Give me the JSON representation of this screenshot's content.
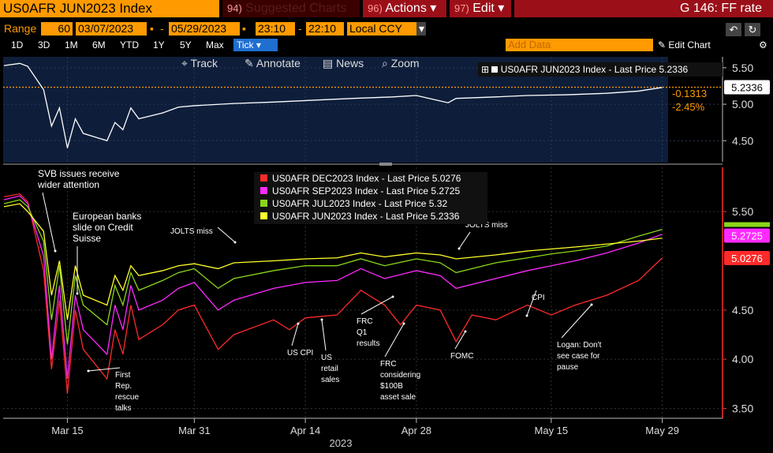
{
  "header": {
    "ticker": "US0AFR JUN2023 Index",
    "suggested_num": "94)",
    "suggested": "Suggested Charts",
    "actions_num": "96)",
    "actions": "Actions",
    "edit_num": "97)",
    "edit": "Edit",
    "chart_name": "G 146: FF rate"
  },
  "range": {
    "label": "Range",
    "count": "60",
    "start_date": "03/07/2023",
    "end_date": "05/29/2023",
    "start_time": "23:10",
    "end_time": "22:10",
    "currency": "Local CCY",
    "add_data": "Add Data",
    "edit_chart": "Edit Chart"
  },
  "periods": [
    "1D",
    "3D",
    "1M",
    "6M",
    "YTD",
    "1Y",
    "5Y",
    "Max"
  ],
  "tick_label": "Tick",
  "tools": {
    "track": "Track",
    "annotate": "Annotate",
    "news": "News",
    "zoom": "Zoom"
  },
  "colors": {
    "dec": "#ff2a2a",
    "sep": "#ff2aff",
    "jul": "#8ad61a",
    "jun": "#ffff2a",
    "top_line": "#ffffff",
    "top_bg": "#0e1e3a",
    "orange": "#ff9a00"
  },
  "chart_data": [
    {
      "type": "line",
      "title": "",
      "legend": "US0AFR JUN2023 Index - Last Price 5.2336",
      "last_value": "5.2336",
      "change": "-0.1313",
      "change_pct": "-2.45%",
      "ylim": [
        4.2,
        5.65
      ],
      "yticks": [
        "5.50",
        "5.00",
        "4.50"
      ],
      "ytick_values": [
        5.5,
        5.0,
        4.5
      ],
      "series": [
        {
          "name": "US0AFR JUN2023 Index - Last Price",
          "x": [
            "03/07",
            "03/09",
            "03/10",
            "03/12",
            "03/13",
            "03/14",
            "03/15",
            "03/16",
            "03/17",
            "03/20",
            "03/21",
            "03/22",
            "03/23",
            "03/24",
            "03/27",
            "03/29",
            "03/31",
            "04/05",
            "04/10",
            "04/14",
            "04/20",
            "04/25",
            "04/28",
            "05/02",
            "05/03",
            "05/08",
            "05/12",
            "05/17",
            "05/22",
            "05/26",
            "05/29"
          ],
          "y": [
            5.53,
            5.56,
            5.52,
            5.2,
            4.7,
            4.95,
            4.4,
            4.8,
            4.6,
            4.5,
            4.75,
            4.65,
            4.95,
            4.8,
            4.88,
            4.96,
            4.98,
            5.01,
            5.03,
            5.05,
            5.08,
            5.1,
            5.12,
            5.02,
            5.08,
            5.1,
            5.12,
            5.13,
            5.15,
            5.18,
            5.23
          ]
        }
      ]
    },
    {
      "type": "line",
      "title": "",
      "xlabel": "",
      "year_label": "2023",
      "xticks": [
        "Mar 15",
        "Mar 31",
        "Apr 14",
        "Apr 28",
        "May 15",
        "May 29"
      ],
      "xtick_dates": [
        "03/15",
        "03/31",
        "04/14",
        "04/28",
        "05/15",
        "05/29"
      ],
      "ylim": [
        3.4,
        5.95
      ],
      "yticks": [
        "5.50",
        "4.50",
        "4.00",
        "3.50"
      ],
      "ytick_values": [
        5.5,
        4.5,
        4.0,
        3.5
      ],
      "legend_position": "top-center",
      "series": [
        {
          "name": "US0AFR DEC2023 Index - Last Price 5.0276",
          "last_value": "5.0276",
          "x": [
            "03/07",
            "03/09",
            "03/10",
            "03/12",
            "03/13",
            "03/14",
            "03/15",
            "03/16",
            "03/17",
            "03/20",
            "03/21",
            "03/22",
            "03/23",
            "03/24",
            "03/27",
            "03/29",
            "03/31",
            "04/03",
            "04/05",
            "04/10",
            "04/12",
            "04/14",
            "04/18",
            "04/21",
            "04/24",
            "04/26",
            "04/28",
            "05/01",
            "05/03",
            "05/05",
            "05/08",
            "05/12",
            "05/15",
            "05/18",
            "05/22",
            "05/26",
            "05/29"
          ],
          "y": [
            5.65,
            5.68,
            5.6,
            4.9,
            3.9,
            4.6,
            3.65,
            4.5,
            4.1,
            3.8,
            4.3,
            4.05,
            4.55,
            4.2,
            4.35,
            4.5,
            4.55,
            4.1,
            4.25,
            4.4,
            4.3,
            4.42,
            4.45,
            4.7,
            4.55,
            4.35,
            4.55,
            4.5,
            4.18,
            4.45,
            4.4,
            4.55,
            4.45,
            4.55,
            4.65,
            4.8,
            5.03
          ]
        },
        {
          "name": "US0AFR SEP2023 Index - Last Price 5.2725",
          "last_value": "5.2725",
          "x": [
            "03/07",
            "03/09",
            "03/10",
            "03/12",
            "03/13",
            "03/14",
            "03/15",
            "03/16",
            "03/17",
            "03/20",
            "03/21",
            "03/22",
            "03/23",
            "03/24",
            "03/27",
            "03/29",
            "03/31",
            "04/03",
            "04/05",
            "04/10",
            "04/14",
            "04/18",
            "04/21",
            "04/24",
            "04/28",
            "05/01",
            "05/03",
            "05/08",
            "05/12",
            "05/15",
            "05/18",
            "05/22",
            "05/26",
            "05/29"
          ],
          "y": [
            5.62,
            5.66,
            5.58,
            5.05,
            4.0,
            4.75,
            3.8,
            4.65,
            4.3,
            4.05,
            4.55,
            4.3,
            4.75,
            4.5,
            4.6,
            4.72,
            4.78,
            4.5,
            4.6,
            4.72,
            4.78,
            4.8,
            4.92,
            4.82,
            4.9,
            4.85,
            4.72,
            4.82,
            4.9,
            4.95,
            5.0,
            5.08,
            5.18,
            5.27
          ]
        },
        {
          "name": "US0AFR JUL2023 Index - Last Price 5.32",
          "last_value": "5.32",
          "x": [
            "03/07",
            "03/09",
            "03/10",
            "03/12",
            "03/13",
            "03/14",
            "03/15",
            "03/16",
            "03/17",
            "03/20",
            "03/21",
            "03/22",
            "03/23",
            "03/24",
            "03/27",
            "03/29",
            "03/31",
            "04/03",
            "04/05",
            "04/10",
            "04/14",
            "04/18",
            "04/21",
            "04/24",
            "04/28",
            "05/01",
            "05/03",
            "05/08",
            "05/12",
            "05/15",
            "05/18",
            "05/22",
            "05/26",
            "05/29"
          ],
          "y": [
            5.58,
            5.62,
            5.55,
            5.2,
            4.4,
            4.95,
            4.15,
            4.85,
            4.55,
            4.35,
            4.75,
            4.55,
            4.88,
            4.7,
            4.8,
            4.88,
            4.92,
            4.72,
            4.82,
            4.9,
            4.95,
            4.95,
            5.02,
            4.95,
            5.02,
            4.98,
            4.88,
            4.98,
            5.03,
            5.07,
            5.1,
            5.15,
            5.25,
            5.32
          ]
        },
        {
          "name": "US0AFR JUN2023 Index - Last Price 5.2336",
          "last_value": "5.2336",
          "x": [
            "03/07",
            "03/09",
            "03/10",
            "03/12",
            "03/13",
            "03/14",
            "03/15",
            "03/16",
            "03/17",
            "03/20",
            "03/21",
            "03/22",
            "03/23",
            "03/24",
            "03/27",
            "03/29",
            "03/31",
            "04/03",
            "04/05",
            "04/10",
            "04/14",
            "04/18",
            "04/21",
            "04/24",
            "04/28",
            "05/01",
            "05/03",
            "05/08",
            "05/12",
            "05/15",
            "05/18",
            "05/22",
            "05/26",
            "05/29"
          ],
          "y": [
            5.55,
            5.58,
            5.5,
            5.3,
            4.65,
            5.0,
            4.4,
            4.95,
            4.65,
            4.55,
            4.85,
            4.7,
            4.95,
            4.85,
            4.9,
            4.95,
            4.97,
            4.92,
            4.98,
            5.0,
            5.02,
            5.03,
            5.08,
            5.04,
            5.08,
            5.06,
            5.02,
            5.06,
            5.1,
            5.12,
            5.14,
            5.17,
            5.2,
            5.23
          ]
        }
      ],
      "annotations": [
        {
          "text": [
            "SVB issues receive",
            "wider attention"
          ],
          "date": "03/08",
          "value": 5.62
        },
        {
          "text": [
            "European banks",
            "slide on Credit",
            "Suisse"
          ],
          "date": "03/15",
          "value": 4.65
        },
        {
          "text": [
            "JOLTS miss"
          ],
          "date": "04/04",
          "value": 5.0
        },
        {
          "text": [
            "JOLTS miss"
          ],
          "date": "05/02",
          "value": 5.1
        },
        {
          "text": [
            "First",
            "Rep.",
            "rescue",
            "talks"
          ],
          "date": "03/17",
          "value": 3.8
        },
        {
          "text": [
            "US CPI"
          ],
          "date": "04/12",
          "value": 4.4
        },
        {
          "text": [
            "US",
            "retail",
            "sales"
          ],
          "date": "04/14",
          "value": 4.42
        },
        {
          "text": [
            "FRC",
            "Q1",
            "results"
          ],
          "date": "04/24",
          "value": 4.7
        },
        {
          "text": [
            "FRC",
            "considering",
            "$100B",
            "asset sale"
          ],
          "date": "04/26",
          "value": 4.5
        },
        {
          "text": [
            "FOMC"
          ],
          "date": "05/03",
          "value": 4.28
        },
        {
          "text": [
            "CPI"
          ],
          "date": "05/10",
          "value": 4.52
        },
        {
          "text": [
            "Logan: Don't",
            "see case for",
            "pause"
          ],
          "date": "05/19",
          "value": 4.6
        }
      ]
    }
  ]
}
